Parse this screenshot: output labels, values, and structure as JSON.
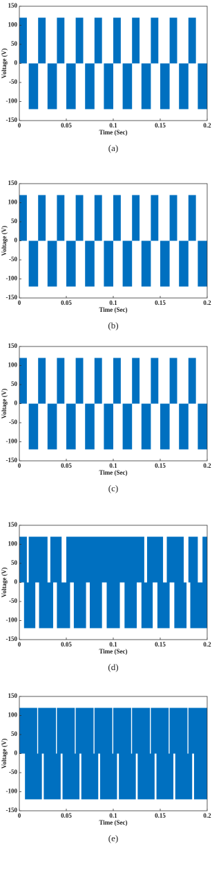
{
  "chart_data": [
    {
      "type": "pulse",
      "xlabel": "Time (Sec)",
      "ylabel": "Voltage (V)",
      "caption": "(a)",
      "color": "#0070c0",
      "xlim": [
        0,
        0.2
      ],
      "ylim": [
        -150,
        150
      ],
      "xticks": [
        0,
        0.05,
        0.1,
        0.15,
        0.2
      ],
      "yticks": [
        -150,
        -100,
        -50,
        0,
        50,
        100,
        150
      ],
      "blocks": {
        "start": [
          0,
          0.01,
          0.02,
          0.03,
          0.04,
          0.05,
          0.06,
          0.07,
          0.08,
          0.09,
          0.1,
          0.11,
          0.12,
          0.13,
          0.14,
          0.15,
          0.16,
          0.17,
          0.18,
          0.19
        ],
        "end": [
          0.008,
          0.02,
          0.028,
          0.04,
          0.048,
          0.06,
          0.068,
          0.08,
          0.088,
          0.1,
          0.108,
          0.12,
          0.128,
          0.14,
          0.148,
          0.16,
          0.168,
          0.18,
          0.188,
          0.2
        ],
        "level": [
          120,
          -120,
          120,
          -120,
          120,
          -120,
          120,
          -120,
          120,
          -120,
          120,
          -120,
          120,
          -120,
          120,
          -120,
          120,
          -120,
          120,
          -120
        ]
      }
    },
    {
      "type": "pulse",
      "xlabel": "Time (Sec)",
      "ylabel": "Voltage (V)",
      "caption": "(b)",
      "color": "#0070c0",
      "xlim": [
        0,
        0.2
      ],
      "ylim": [
        -150,
        150
      ],
      "xticks": [
        0,
        0.05,
        0.1,
        0.15,
        0.2
      ],
      "yticks": [
        -150,
        -100,
        -50,
        0,
        50,
        100,
        150
      ],
      "blocks": {
        "start": [
          0,
          0.01,
          0.02,
          0.03,
          0.04,
          0.05,
          0.06,
          0.07,
          0.08,
          0.09,
          0.1,
          0.11,
          0.12,
          0.13,
          0.14,
          0.15,
          0.16,
          0.17,
          0.18,
          0.19
        ],
        "end": [
          0.008,
          0.02,
          0.028,
          0.04,
          0.048,
          0.06,
          0.068,
          0.08,
          0.088,
          0.1,
          0.108,
          0.12,
          0.128,
          0.14,
          0.148,
          0.16,
          0.168,
          0.18,
          0.188,
          0.2
        ],
        "level": [
          120,
          -120,
          120,
          -120,
          120,
          -120,
          120,
          -120,
          120,
          -120,
          120,
          -120,
          120,
          -120,
          120,
          -120,
          120,
          -120,
          120,
          -120
        ]
      }
    },
    {
      "type": "pulse",
      "xlabel": "Time (Sec)",
      "ylabel": "Voltage (V)",
      "caption": "(c)",
      "color": "#0070c0",
      "xlim": [
        0,
        0.2
      ],
      "ylim": [
        -150,
        150
      ],
      "xticks": [
        0,
        0.05,
        0.1,
        0.15,
        0.2
      ],
      "yticks": [
        -150,
        -100,
        -50,
        0,
        50,
        100,
        150
      ],
      "blocks": {
        "start": [
          0,
          0.01,
          0.02,
          0.03,
          0.04,
          0.05,
          0.06,
          0.07,
          0.08,
          0.09,
          0.1,
          0.11,
          0.12,
          0.13,
          0.14,
          0.15,
          0.16,
          0.17,
          0.18,
          0.19
        ],
        "end": [
          0.008,
          0.02,
          0.028,
          0.04,
          0.048,
          0.06,
          0.068,
          0.08,
          0.088,
          0.1,
          0.108,
          0.12,
          0.128,
          0.14,
          0.148,
          0.16,
          0.168,
          0.18,
          0.188,
          0.2
        ],
        "level": [
          120,
          -120,
          120,
          -120,
          120,
          -120,
          120,
          -120,
          120,
          -120,
          120,
          -120,
          120,
          -120,
          120,
          -120,
          120,
          -120,
          120,
          -120
        ]
      }
    },
    {
      "type": "pulse",
      "xlabel": "Time (Sec)",
      "ylabel": "Voltage (V)",
      "caption": "(d)",
      "color": "#0070c0",
      "xlim": [
        0,
        0.2
      ],
      "ylim": [
        -150,
        150
      ],
      "xticks": [
        0,
        0.05,
        0.1,
        0.15,
        0.2
      ],
      "yticks": [
        -150,
        -100,
        -50,
        0,
        50,
        100,
        150
      ],
      "blocks": {
        "start": [
          0,
          0.01,
          0.033,
          0.05,
          0.136,
          0.157,
          0.18,
          0.195,
          0.005,
          0.021,
          0.04,
          0.058,
          0.075,
          0.093,
          0.112,
          0.13,
          0.147,
          0.165,
          0.182
        ],
        "end": [
          0.008,
          0.03,
          0.045,
          0.133,
          0.153,
          0.175,
          0.19,
          0.2,
          0.017,
          0.036,
          0.054,
          0.071,
          0.088,
          0.107,
          0.125,
          0.142,
          0.16,
          0.178,
          0.2
        ],
        "level": [
          120,
          120,
          120,
          120,
          120,
          120,
          120,
          120,
          -120,
          -120,
          -120,
          -120,
          -120,
          -120,
          -120,
          -120,
          -120,
          -120,
          -120
        ]
      }
    },
    {
      "type": "pulse",
      "xlabel": "Time (Sec)",
      "ylabel": "Voltage (V)",
      "caption": "(e)",
      "color": "#0070c0",
      "xlim": [
        0,
        0.2
      ],
      "ylim": [
        -150,
        150
      ],
      "xticks": [
        0,
        0.05,
        0.1,
        0.15,
        0.2
      ],
      "yticks": [
        -150,
        -100,
        -50,
        0,
        50,
        100,
        150
      ],
      "blocks": {
        "start": [
          0,
          0.02,
          0.04,
          0.06,
          0.08,
          0.1,
          0.12,
          0.14,
          0.16,
          0.18,
          0.006,
          0.026,
          0.046,
          0.066,
          0.086,
          0.106,
          0.126,
          0.146,
          0.166,
          0.186
        ],
        "end": [
          0.019,
          0.039,
          0.059,
          0.079,
          0.099,
          0.119,
          0.139,
          0.159,
          0.179,
          0.2,
          0.024,
          0.044,
          0.064,
          0.084,
          0.104,
          0.124,
          0.144,
          0.164,
          0.184,
          0.2
        ],
        "level": [
          120,
          120,
          120,
          120,
          120,
          120,
          120,
          120,
          120,
          120,
          -120,
          -120,
          -120,
          -120,
          -120,
          -120,
          -120,
          -120,
          -120,
          -120
        ]
      }
    }
  ]
}
